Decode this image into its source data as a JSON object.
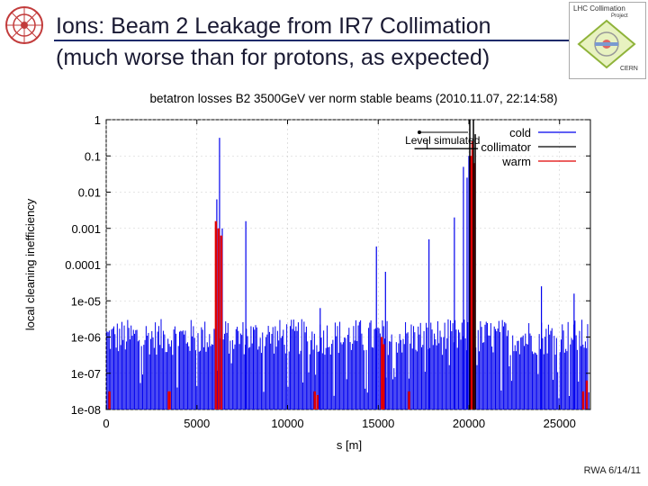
{
  "slide": {
    "title_line1": "Ions: Beam 2 Leakage from IR7 Collimation",
    "title_line2": "(much worse than for protons, as expected)",
    "footer": "RWA 6/14/11"
  },
  "logos": {
    "right_title": "LHC Collimation",
    "right_sub": "Project",
    "right_org": "CERN"
  },
  "colors": {
    "cold": "#0000ee",
    "collimator": "#000000",
    "warm": "#e00000",
    "title_rule": "#1a2a6a"
  },
  "chart_data": {
    "type": "bar",
    "scale": "log",
    "title": "betatron losses B2 3500GeV ver norm stable beams (2010.11.07, 22:14:58)",
    "xlabel": "s [m]",
    "ylabel": "local cleaning inefficiency",
    "xlim": [
      0,
      26700
    ],
    "ylim_exp": [
      -8,
      0
    ],
    "xticks": [
      0,
      5000,
      10000,
      15000,
      20000,
      25000
    ],
    "xtick_labels": [
      "0",
      "5000",
      "10000",
      "15000",
      "20000",
      "25000"
    ],
    "yticks_exp": [
      0,
      -1,
      -2,
      -3,
      -4,
      -5,
      -6,
      -7,
      -8
    ],
    "ytick_labels": [
      "1",
      "0.1",
      "0.01",
      "0.001",
      "0.0001",
      "1e-05",
      "1e-06",
      "1e-07",
      "1e-08"
    ],
    "legend": [
      "cold",
      "collimator",
      "warm"
    ],
    "legend_position": "top-right",
    "annotation": {
      "text": "Level simulated",
      "level_exp": -0.8,
      "x_from": 17000,
      "x_to": 20500
    },
    "cold_background_exp_range": [
      -6.5,
      -5.5
    ],
    "cold_peaks": [
      {
        "s": 6250,
        "exp": -0.5
      },
      {
        "s": 6100,
        "exp": -2.2
      },
      {
        "s": 6400,
        "exp": -3.0
      },
      {
        "s": 7700,
        "exp": -2.8
      },
      {
        "s": 11800,
        "exp": -5.2
      },
      {
        "s": 14900,
        "exp": -3.5
      },
      {
        "s": 15400,
        "exp": -4.2
      },
      {
        "s": 17800,
        "exp": -3.3
      },
      {
        "s": 19200,
        "exp": -2.7
      },
      {
        "s": 19700,
        "exp": -1.3
      },
      {
        "s": 19900,
        "exp": -1.6
      },
      {
        "s": 20000,
        "exp": -1.0
      },
      {
        "s": 20100,
        "exp": -1.7
      },
      {
        "s": 24000,
        "exp": -4.6
      },
      {
        "s": 25800,
        "exp": -4.8
      }
    ],
    "collimator_lines": [
      {
        "s": 20050,
        "exp": 0.0
      },
      {
        "s": 20250,
        "exp": 0.0
      },
      {
        "s": 20350,
        "exp": -0.4
      }
    ],
    "warm_lines": [
      {
        "s": 180,
        "exp": -7.5
      },
      {
        "s": 3450,
        "exp": -7.5
      },
      {
        "s": 3500,
        "exp": -7.5
      },
      {
        "s": 6050,
        "exp": -2.8
      },
      {
        "s": 6200,
        "exp": -3.0
      },
      {
        "s": 6350,
        "exp": -3.2
      },
      {
        "s": 11500,
        "exp": -7.5
      },
      {
        "s": 11650,
        "exp": -7.6
      },
      {
        "s": 15200,
        "exp": -6.0
      },
      {
        "s": 15300,
        "exp": -6.2
      },
      {
        "s": 16700,
        "exp": -7.5
      },
      {
        "s": 20100,
        "exp": -1.0
      },
      {
        "s": 20200,
        "exp": -0.6
      },
      {
        "s": 20300,
        "exp": -1.2
      },
      {
        "s": 26300,
        "exp": -7.5
      },
      {
        "s": 26500,
        "exp": -7.2
      }
    ]
  }
}
